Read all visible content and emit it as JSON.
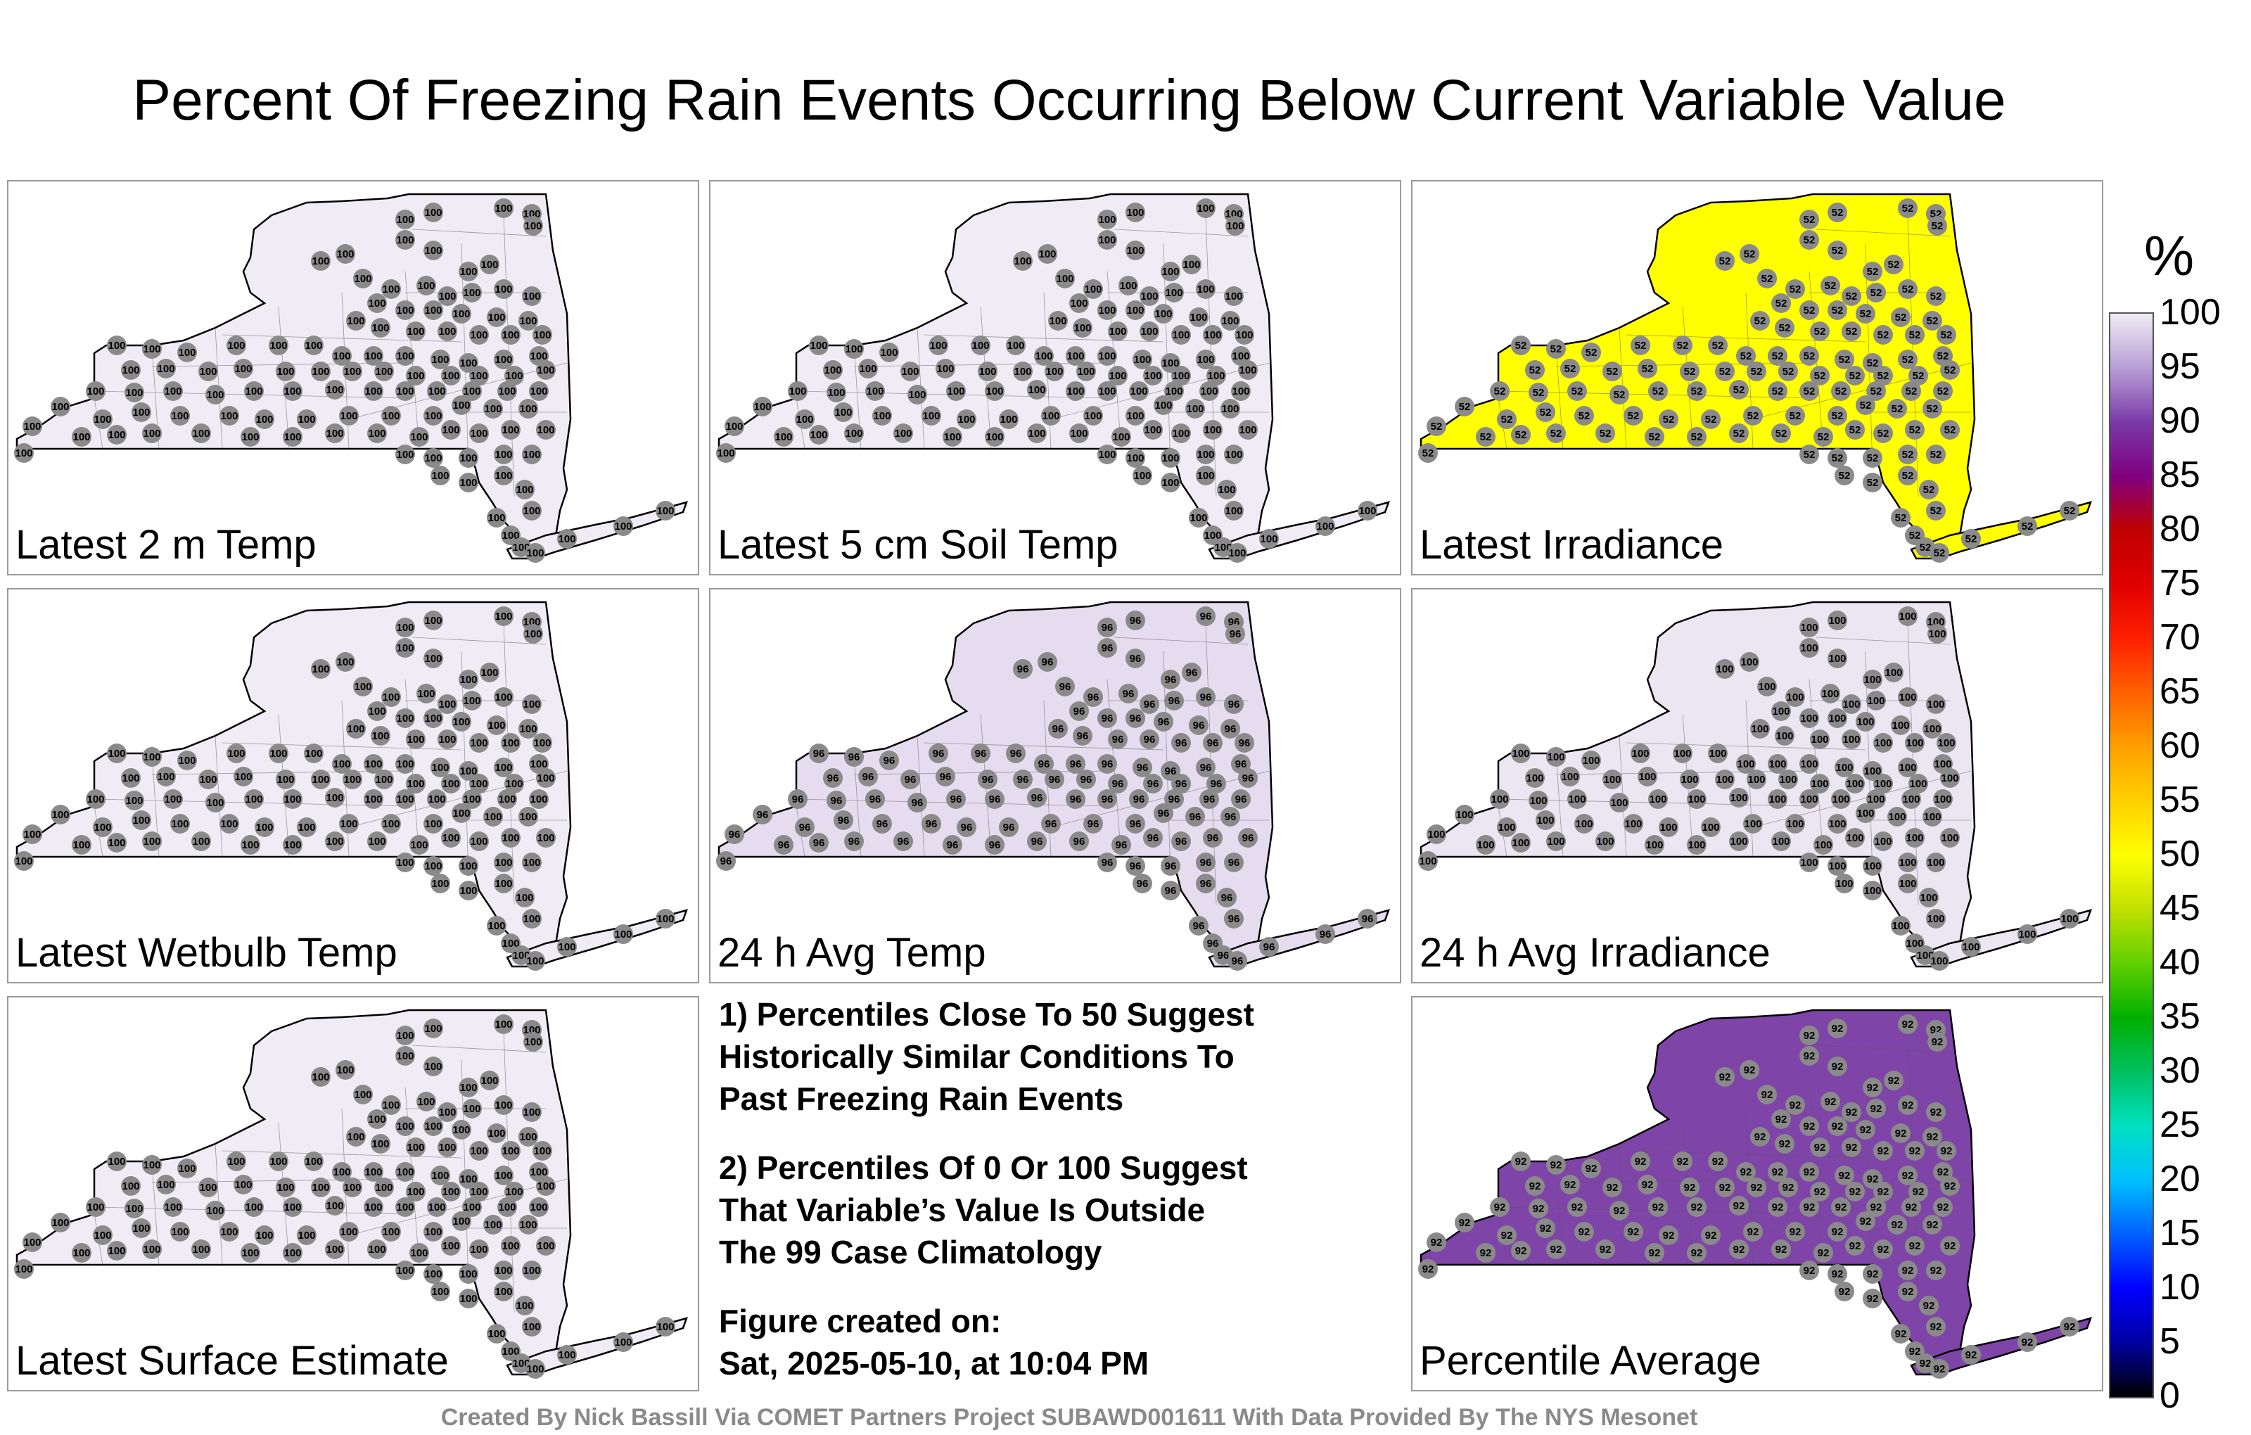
{
  "title": "Percent Of Freezing Rain Events Occurring Below Current Variable Value",
  "panels": [
    {
      "label": "Latest 2 m Temp",
      "fill": "#f0ecf5",
      "value": 100
    },
    {
      "label": "Latest 5 cm Soil Temp",
      "fill": "#f0ecf5",
      "value": 100
    },
    {
      "label": "Latest Irradiance",
      "fill": "#ffff00",
      "value": 52
    },
    {
      "label": "Latest Wetbulb Temp",
      "fill": "#f0ecf5",
      "value": 100
    },
    {
      "label": "24 h Avg Temp",
      "fill": "#e6dcef",
      "value": 96
    },
    {
      "label": "24 h Avg Irradiance",
      "fill": "#ece6f3",
      "value": 100
    },
    {
      "label": "Latest Surface Estimate",
      "fill": "#f0ecf5",
      "value": 100
    },
    {
      "label": "Percentile Average",
      "fill": "#7f44a8",
      "value": 92
    }
  ],
  "notes": {
    "note1": "1) Percentiles Close To 50 Suggest\nHistorically Similar Conditions To\nPast Freezing Rain Events",
    "note2": "2) Percentiles Of 0 Or 100 Suggest\nThat Variable’s Value Is Outside\nThe 99 Case Climatology",
    "created_heading": "Figure created on:",
    "created_date": "Sat, 2025-05-10, at 10:04 PM"
  },
  "footer": "Created By Nick Bassill Via COMET Partners Project SUBAWD001611 With Data Provided By The NYS Mesonet",
  "colorbar": {
    "unit": "%",
    "ticks": [
      "100",
      "95",
      "90",
      "85",
      "80",
      "75",
      "70",
      "65",
      "60",
      "55",
      "50",
      "45",
      "40",
      "35",
      "30",
      "25",
      "20",
      "15",
      "10",
      "5",
      "0"
    ],
    "colors": [
      "#000000",
      "#0000a0",
      "#0000ff",
      "#0060ff",
      "#00c0ff",
      "#00e0c0",
      "#00c060",
      "#00b000",
      "#60d000",
      "#c0e000",
      "#ffff00",
      "#ffd000",
      "#ffa000",
      "#ff6000",
      "#ff2000",
      "#e00000",
      "#c00000",
      "#800080",
      "#7a3aa8",
      "#b89fd6",
      "#f0ecf5"
    ]
  }
}
